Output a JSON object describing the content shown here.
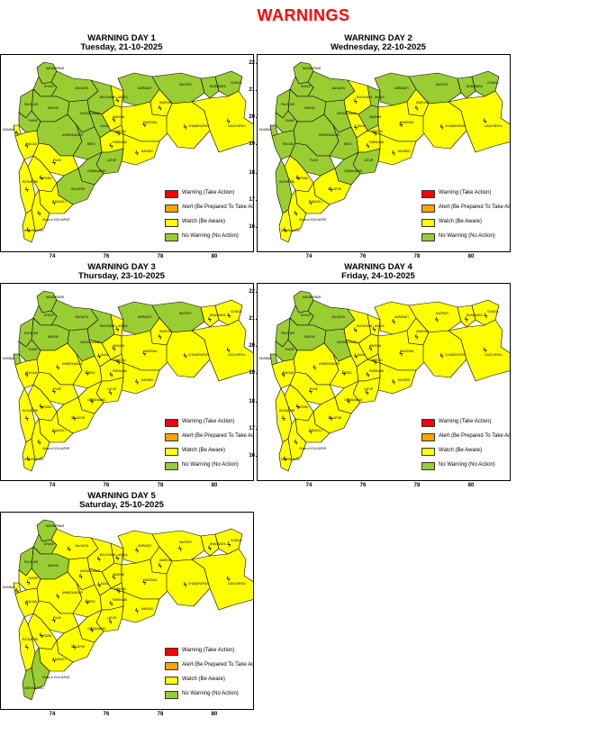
{
  "title": "WARNINGS",
  "colors": {
    "warning": "#ff0000",
    "alert": "#ffa500",
    "watch": "#ffff00",
    "nowarning": "#9acd32",
    "border": "#000000"
  },
  "legend": [
    {
      "key": "warning",
      "label": "Warning (Take Action)"
    },
    {
      "key": "alert",
      "label": "Alert (Be Prepared To Take Action)"
    },
    {
      "key": "watch",
      "label": "Watch (Be Aware)"
    },
    {
      "key": "nowarning",
      "label": "No Warning (No Action)"
    }
  ],
  "axes": {
    "x_ticks": [
      "74",
      "76",
      "78",
      "80"
    ],
    "y_ticks": [
      "22",
      "21",
      "20",
      "19",
      "18",
      "17",
      "16"
    ]
  },
  "district_labels": {
    "nandurbar": "NANDURBAR",
    "dhule": "DHULE",
    "jalgaon": "JALGAON",
    "amravati": "AMRAVATI",
    "nagpur": "NAGPUR",
    "gondia": "GONDIA",
    "bhandara": "BHANDARA",
    "wardha": "WARDHA",
    "buldhana": "BULDHANA",
    "akola": "AKOLA",
    "washim": "WASHIM",
    "yavatmal": "YAVATMAL",
    "chandrapur": "CHANDRAPUR",
    "gadchiroli": "GADCHIROLI",
    "nashik": "NASHIK",
    "palghar": "PALGHAR",
    "thane": "THANE",
    "mumbai": "MUMBAI",
    "raigad": "RAIGAD",
    "pune": "PUNE",
    "ahmednagar": "AHMEDNAGAR",
    "aurangabad": "AURANGABAD",
    "jalna": "JALNA",
    "beed": "BEED",
    "parbhani": "PARBHANI",
    "hingoli": "HINGOLI",
    "nanded": "NANDED",
    "latur": "LATUR",
    "osmanabad": "OSMANABAD",
    "solapur": "SOLAPUR",
    "satara": "SATARA",
    "sangli": "SANGLI",
    "ratnagiri": "RATNAGIRI",
    "sindhudurg": "SINDHUDURG",
    "kolhapur": "Ghats of KOLHAPUR"
  },
  "days": [
    {
      "title": "WARNING DAY 1",
      "subtitle": "Tuesday, 21-10-2025",
      "districts": {
        "nandurbar": "nowarning",
        "dhule": "nowarning",
        "jalgaon": "nowarning",
        "buldhana": "nowarning",
        "akola": "yellow_w",
        "amravati": "nowarning",
        "nagpur": "nowarning",
        "gondia": "nowarning",
        "bhandara": "nowarning",
        "wardha": "watch",
        "washim": "watch",
        "yavatmal": "watch",
        "chandrapur": "watch",
        "gadchiroli": "watch",
        "nashik": "nowarning",
        "palghar": "nowarning",
        "thane": "nowarning",
        "mumbai": "watch",
        "raigad": "watch",
        "pune": "watch",
        "ahmednagar": "nowarning",
        "aurangabad": "nowarning",
        "jalna": "nowarning",
        "beed": "nowarning",
        "parbhani": "watch",
        "hingoli": "watch",
        "nanded": "watch",
        "latur": "nowarning",
        "osmanabad": "nowarning",
        "solapur": "nowarning",
        "satara": "watch",
        "sangli": "watch",
        "ratnagiri": "watch",
        "sindhudurg": "watch",
        "kolhapur": "watch"
      }
    },
    {
      "title": "WARNING DAY 2",
      "subtitle": "Wednesday, 22-10-2025",
      "districts": {
        "nandurbar": "nowarning",
        "dhule": "nowarning",
        "jalgaon": "nowarning",
        "buldhana": "watch",
        "akola": "nowarning",
        "amravati": "nowarning",
        "nagpur": "nowarning",
        "gondia": "nowarning",
        "bhandara": "nowarning",
        "wardha": "watch",
        "washim": "nowarning",
        "yavatmal": "watch",
        "chandrapur": "watch",
        "gadchiroli": "watch",
        "nashik": "nowarning",
        "palghar": "nowarning",
        "thane": "nowarning",
        "mumbai": "nowarning",
        "raigad": "nowarning",
        "pune": "nowarning",
        "ahmednagar": "nowarning",
        "aurangabad": "nowarning",
        "jalna": "watch",
        "beed": "nowarning",
        "parbhani": "watch",
        "hingoli": "watch",
        "nanded": "watch",
        "latur": "nowarning",
        "osmanabad": "nowarning",
        "solapur": "watch",
        "satara": "watch",
        "sangli": "watch",
        "ratnagiri": "nowarning",
        "sindhudurg": "watch",
        "kolhapur": "watch"
      }
    },
    {
      "title": "WARNING DAY 3",
      "subtitle": "Thursday, 23-10-2025",
      "districts": {
        "nandurbar": "nowarning",
        "dhule": "nowarning",
        "jalgaon": "nowarning",
        "buldhana": "nowarning",
        "akola": "watch",
        "amravati": "nowarning",
        "nagpur": "nowarning",
        "gondia": "watch",
        "bhandara": "watch",
        "wardha": "watch",
        "washim": "watch",
        "yavatmal": "watch",
        "chandrapur": "watch",
        "gadchiroli": "watch",
        "nashik": "nowarning",
        "palghar": "nowarning",
        "thane": "nowarning",
        "mumbai": "nowarning",
        "raigad": "watch",
        "pune": "watch",
        "ahmednagar": "watch",
        "aurangabad": "nowarning",
        "jalna": "watch",
        "beed": "watch",
        "parbhani": "watch",
        "hingoli": "watch",
        "nanded": "watch",
        "latur": "watch",
        "osmanabad": "watch",
        "solapur": "watch",
        "satara": "watch",
        "sangli": "watch",
        "ratnagiri": "watch",
        "sindhudurg": "watch",
        "kolhapur": "watch"
      }
    },
    {
      "title": "WARNING DAY 4",
      "subtitle": "Friday, 24-10-2025",
      "districts": {
        "nandurbar": "nowarning",
        "dhule": "nowarning",
        "jalgaon": "nowarning",
        "buldhana": "watch",
        "akola": "watch",
        "amravati": "watch",
        "nagpur": "watch",
        "gondia": "watch",
        "bhandara": "watch",
        "wardha": "watch",
        "washim": "watch",
        "yavatmal": "watch",
        "chandrapur": "watch",
        "gadchiroli": "watch",
        "nashik": "nowarning",
        "palghar": "nowarning",
        "thane": "nowarning",
        "mumbai": "nowarning",
        "raigad": "watch",
        "pune": "watch",
        "ahmednagar": "watch",
        "aurangabad": "nowarning",
        "jalna": "watch",
        "beed": "watch",
        "parbhani": "watch",
        "hingoli": "watch",
        "nanded": "watch",
        "latur": "watch",
        "osmanabad": "watch",
        "solapur": "watch",
        "satara": "watch",
        "sangli": "watch",
        "ratnagiri": "watch",
        "sindhudurg": "watch",
        "kolhapur": "watch"
      }
    },
    {
      "title": "WARNING DAY 5",
      "subtitle": "Saturday, 25-10-2025",
      "districts": {
        "nandurbar": "nowarning",
        "dhule": "nowarning",
        "jalgaon": "watch",
        "buldhana": "watch",
        "akola": "watch",
        "amravati": "watch",
        "nagpur": "watch",
        "gondia": "watch",
        "bhandara": "watch",
        "wardha": "watch",
        "washim": "watch",
        "yavatmal": "watch",
        "chandrapur": "watch",
        "gadchiroli": "watch",
        "nashik": "nowarning",
        "palghar": "nowarning",
        "thane": "watch",
        "mumbai": "watch",
        "raigad": "watch",
        "pune": "watch",
        "ahmednagar": "watch",
        "aurangabad": "watch",
        "jalna": "watch",
        "beed": "watch",
        "parbhani": "watch",
        "hingoli": "watch",
        "nanded": "watch",
        "latur": "watch",
        "osmanabad": "watch",
        "solapur": "watch",
        "satara": "watch",
        "sangli": "watch",
        "ratnagiri": "watch",
        "sindhudurg": "nowarning",
        "kolhapur": "nowarning"
      }
    }
  ]
}
